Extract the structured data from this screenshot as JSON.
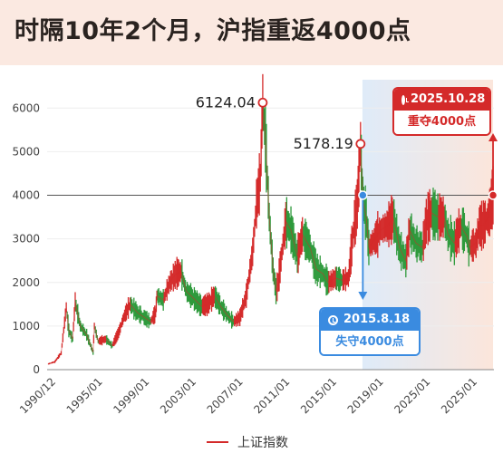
{
  "title": "时隔10年2个月，沪指重返4000点",
  "legend": {
    "label": "上证指数"
  },
  "annotations": {
    "peak_2007": "6124.04",
    "peak_2015": "5178.19",
    "blue": {
      "date": "2015.8.18",
      "text": "失守4000点"
    },
    "red": {
      "date": "2025.10.28",
      "text": "重夺4000点"
    }
  },
  "colors": {
    "line": "#d42a2a",
    "candle_up": "#d42a2a",
    "candle_down": "#2e9a3c",
    "blue": "#3a8be0",
    "red": "#d42a2a",
    "header_bg": "#fbe9e1"
  },
  "chart_data": {
    "type": "line",
    "x_ticks": [
      "1990/12",
      "1995/01",
      "1999/01",
      "2003/01",
      "2007/01",
      "2011/01",
      "2015/01",
      "2019/01",
      "2025/01",
      "2025/01"
    ],
    "y_ticks": [
      "0",
      "1000",
      "2000",
      "3000",
      "4000",
      "5000",
      "6000"
    ],
    "ylim": [
      0,
      6400
    ],
    "xlim": [
      1990.9,
      2025.9
    ],
    "reference_line": 4000,
    "highlight_range": [
      2015.6,
      2025.83
    ],
    "series": [
      {
        "name": "上证指数",
        "x": [
          1990.95,
          1991.5,
          1992.0,
          1992.4,
          1992.6,
          1992.9,
          1993.1,
          1993.5,
          1994.0,
          1994.5,
          1994.6,
          1994.9,
          1995.5,
          1996.0,
          1996.5,
          1996.9,
          1997.4,
          1998.0,
          1998.5,
          1999.0,
          1999.4,
          1999.5,
          2000.0,
          2000.5,
          2001.0,
          2001.4,
          2001.8,
          2002.5,
          2003.0,
          2003.5,
          2004.0,
          2004.5,
          2005.0,
          2005.5,
          2006.0,
          2006.5,
          2007.0,
          2007.3,
          2007.6,
          2007.79,
          2008.0,
          2008.3,
          2008.6,
          2008.83,
          2009.0,
          2009.3,
          2009.6,
          2010.0,
          2010.5,
          2010.9,
          2011.5,
          2012.0,
          2012.5,
          2012.9,
          2013.5,
          2014.0,
          2014.5,
          2014.9,
          2015.2,
          2015.45,
          2015.63,
          2015.9,
          2016.1,
          2016.6,
          2017.0,
          2017.6,
          2018.0,
          2018.5,
          2019.0,
          2019.3,
          2019.8,
          2020.3,
          2020.6,
          2021.0,
          2021.5,
          2022.0,
          2022.3,
          2022.8,
          2023.3,
          2023.8,
          2024.0,
          2024.5,
          2024.75,
          2025.0,
          2025.5,
          2025.83
        ],
        "y": [
          127,
          180,
          380,
          1429,
          900,
          700,
          1558,
          1000,
          800,
          400,
          1000,
          650,
          700,
          550,
          850,
          1200,
          1500,
          1300,
          1200,
          1100,
          1300,
          1700,
          1600,
          2000,
          2200,
          2245,
          1800,
          1600,
          1450,
          1500,
          1700,
          1450,
          1250,
          1100,
          1200,
          1700,
          2700,
          3800,
          4400,
          6124,
          5300,
          3500,
          2300,
          1800,
          2000,
          2700,
          3400,
          3200,
          2600,
          3100,
          2800,
          2300,
          2200,
          2000,
          2100,
          2050,
          2100,
          3200,
          3800,
          5178,
          3900,
          3500,
          2800,
          3000,
          3200,
          3300,
          3500,
          2800,
          2500,
          3200,
          2900,
          2800,
          3400,
          3600,
          3500,
          3500,
          3100,
          2900,
          3300,
          3050,
          2800,
          2900,
          3300,
          3300,
          3500,
          4000
        ]
      }
    ]
  }
}
